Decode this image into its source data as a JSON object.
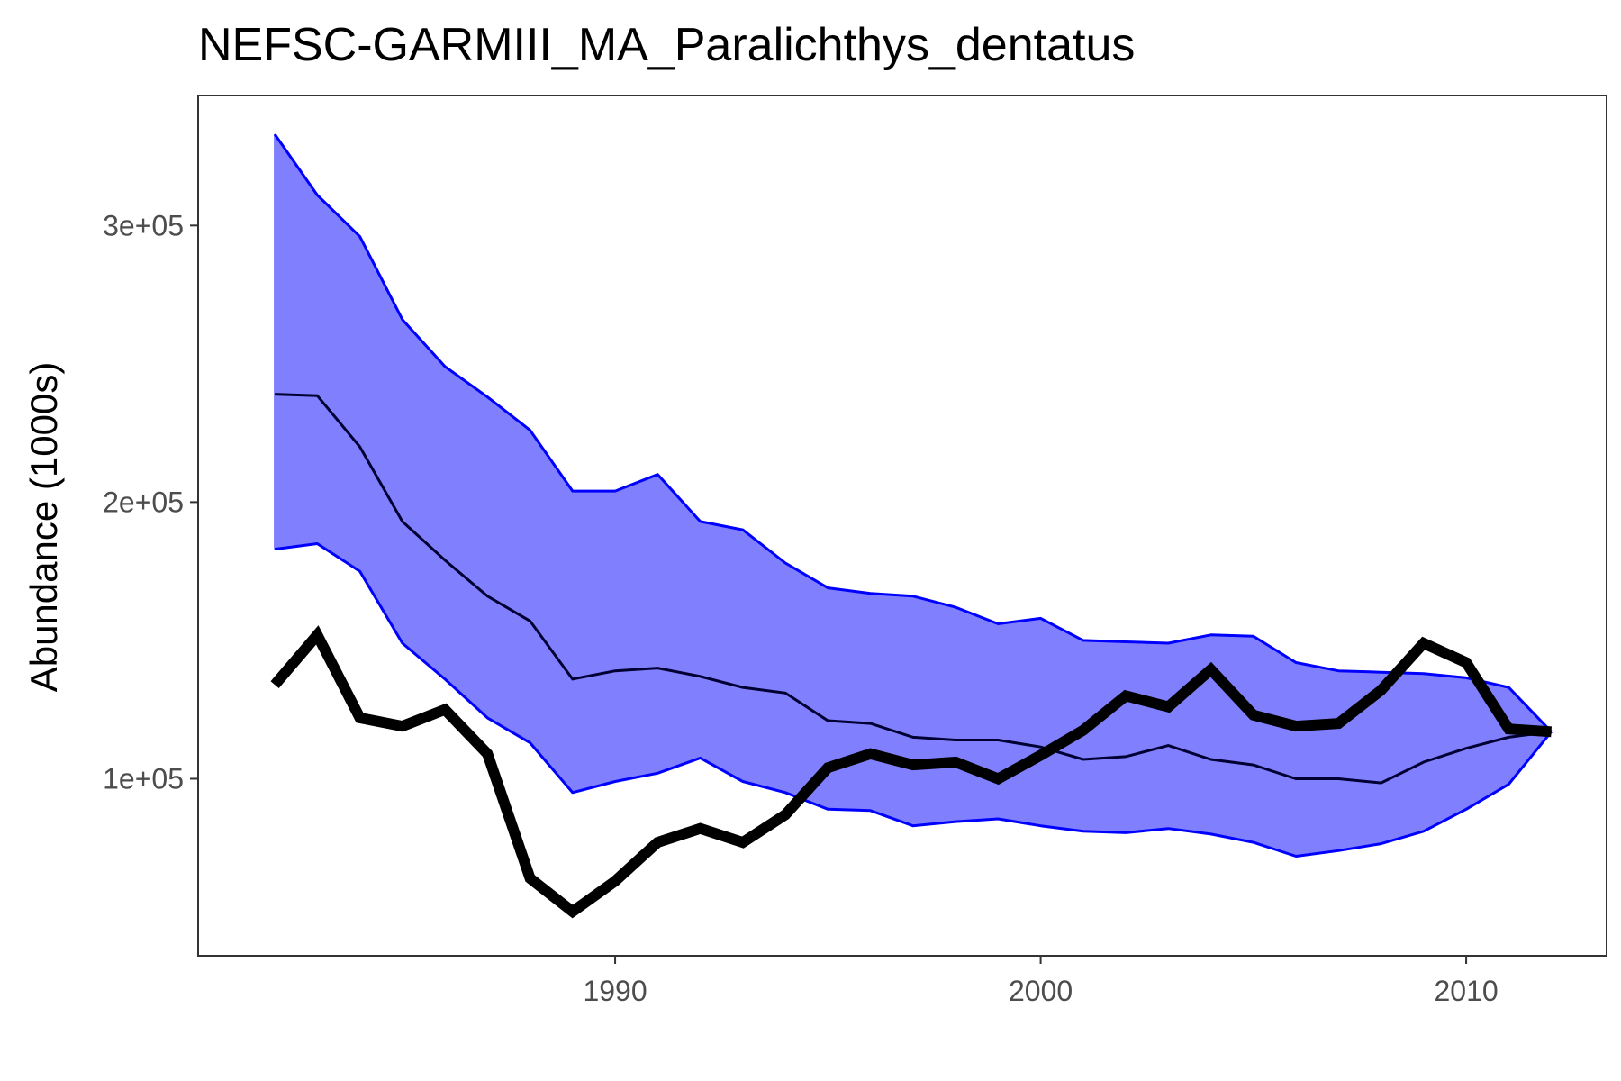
{
  "chart_data": {
    "type": "line",
    "title": "NEFSC-GARMIII_MA_Paralichthys_dentatus",
    "xlabel": "",
    "ylabel": "Abundance (1000s)",
    "x_ticks": [
      1990,
      2000,
      2010
    ],
    "x_tick_labels": [
      "1990",
      "2000",
      "2010"
    ],
    "y_ticks": [
      100000,
      200000,
      300000
    ],
    "y_tick_labels": [
      "1e+05",
      "2e+05",
      "3e+05"
    ],
    "xlim": [
      1980.2,
      2013.3
    ],
    "ylim": [
      36000,
      347000
    ],
    "grid": false,
    "legend": "none",
    "x": [
      1982,
      1983,
      1984,
      1985,
      1986,
      1987,
      1988,
      1989,
      1990,
      1991,
      1992,
      1993,
      1994,
      1995,
      1996,
      1997,
      1998,
      1999,
      2000,
      2001,
      2002,
      2003,
      2004,
      2005,
      2006,
      2007,
      2008,
      2009,
      2010,
      2011,
      2012
    ],
    "band": {
      "color": "#0000ff",
      "fill": "#8080ff",
      "upper": [
        333000,
        311000,
        296000,
        266000,
        249000,
        238000,
        226000,
        204000,
        204000,
        210000,
        193000,
        190000,
        178000,
        169000,
        167000,
        166000,
        162000,
        156000,
        158000,
        150000,
        149500,
        149000,
        152000,
        151500,
        142000,
        139000,
        138500,
        138000,
        136500,
        133000,
        117000
      ],
      "lower": [
        183000,
        185000,
        175000,
        149000,
        136000,
        122000,
        113000,
        95000,
        99000,
        102000,
        107500,
        99000,
        95000,
        89000,
        88500,
        83000,
        84500,
        85500,
        83000,
        81000,
        80500,
        82000,
        80000,
        77000,
        72000,
        74000,
        76500,
        81000,
        89000,
        98000,
        117000
      ]
    },
    "series": [
      {
        "color": "#000033",
        "values": [
          239000,
          238500,
          220000,
          193000,
          179000,
          166000,
          157000,
          136000,
          139000,
          140000,
          137000,
          133000,
          131000,
          121000,
          120000,
          115000,
          114000,
          114000,
          111500,
          107000,
          108000,
          112000,
          107000,
          105000,
          100000,
          100000,
          98500,
          106000,
          111000,
          115000,
          117000
        ]
      },
      {
        "color": "#000000",
        "values": [
          134000,
          152000,
          122000,
          119000,
          125000,
          109000,
          64000,
          52000,
          63000,
          77000,
          82000,
          77000,
          87000,
          104000,
          109000,
          105000,
          106000,
          100000,
          108500,
          117500,
          130000,
          126000,
          139500,
          123000,
          119000,
          120000,
          132000,
          149000,
          142000,
          118000,
          117000
        ]
      }
    ]
  }
}
